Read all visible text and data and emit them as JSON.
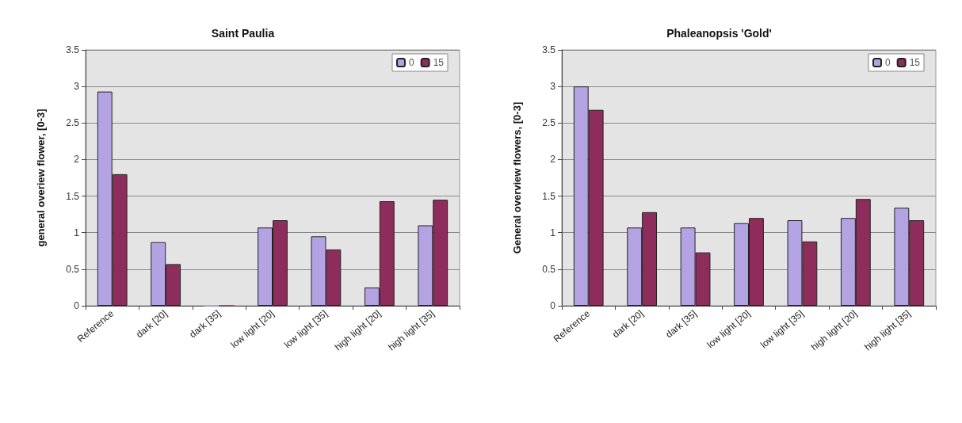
{
  "chart_data": [
    {
      "type": "bar",
      "title": "Saint Paulia",
      "ylabel": "general overiew flower, [0-3]",
      "categories": [
        "Reference",
        "dark [20]",
        "dark [35]",
        "low light [20]",
        "low light [35]",
        "high light [20]",
        "high light [35]"
      ],
      "series": [
        {
          "name": "0",
          "color": "#b4a3e3",
          "values": [
            2.93,
            0.87,
            0,
            1.07,
            0.95,
            0.25,
            1.1
          ]
        },
        {
          "name": "15",
          "color": "#8e2d5c",
          "values": [
            1.8,
            0.57,
            0,
            1.17,
            0.77,
            1.43,
            1.45
          ]
        }
      ],
      "ylim": [
        0,
        3.5
      ],
      "yticks": [
        0,
        0.5,
        1,
        1.5,
        2,
        2.5,
        3,
        3.5
      ],
      "grid": "y",
      "legend": "top right"
    },
    {
      "type": "bar",
      "title": "Phaleanopsis 'Gold'",
      "ylabel": "General overview flowers, [0-3]",
      "categories": [
        "Reference",
        "dark [20]",
        "dark [35]",
        "low light [20]",
        "low light [35]",
        "high light [20]",
        "high light [35]"
      ],
      "series": [
        {
          "name": "0",
          "color": "#b4a3e3",
          "values": [
            3.0,
            1.07,
            1.07,
            1.13,
            1.17,
            1.2,
            1.34
          ]
        },
        {
          "name": "15",
          "color": "#8e2d5c",
          "values": [
            2.68,
            1.28,
            0.73,
            1.2,
            0.88,
            1.46,
            1.17
          ]
        }
      ],
      "ylim": [
        0,
        3.5
      ],
      "yticks": [
        0,
        0.5,
        1,
        1.5,
        2,
        2.5,
        3,
        3.5
      ],
      "grid": "y",
      "legend": "top right"
    }
  ]
}
